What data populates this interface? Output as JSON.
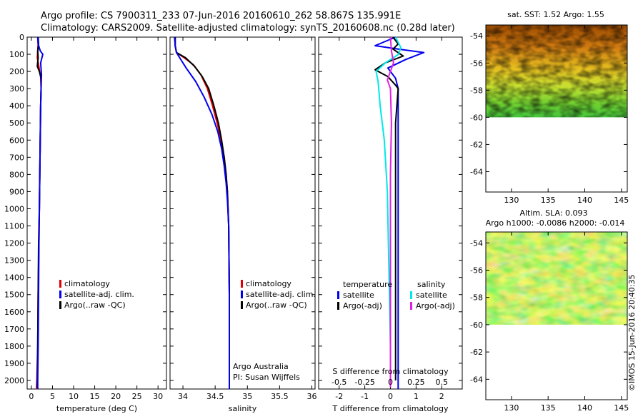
{
  "title": {
    "line1": "Argo profile: CS 7900311_233 07-Jun-2016 20160610_262 58.867S 135.991E",
    "line2": "Climatology: CARS2009. Satellite-adjusted climatology: synTS_20160608.nc (0.28d later)"
  },
  "colors": {
    "climatology": "#e00000",
    "satellite": "#0000ee",
    "argo": "#000000",
    "sal_satellite": "#00e8e8",
    "sal_argo": "#e020e0"
  },
  "chart_data": [
    {
      "id": "temperature",
      "type": "line",
      "xlabel": "temperature (deg C)",
      "xticks": [
        0,
        5,
        10,
        15,
        20,
        25,
        30
      ],
      "xlim": [
        -1,
        32
      ],
      "ylim": [
        0,
        2050
      ],
      "yreversed": true,
      "yticks": [
        0,
        100,
        200,
        300,
        400,
        500,
        600,
        700,
        800,
        900,
        1000,
        1100,
        1200,
        1300,
        1400,
        1500,
        1600,
        1700,
        1800,
        1900,
        2000
      ],
      "legend": [
        "climatology",
        "satellite-adj. clim.",
        "Argo(..raw -QC)"
      ],
      "series": [
        {
          "name": "climatology",
          "color_key": "climatology",
          "x": [
            1.5,
            1.6,
            1.5,
            1.4,
            1.7,
            1.9,
            2.2,
            2.3,
            2.2,
            2.1,
            2.0,
            1.9,
            1.8,
            1.6,
            1.5,
            1.3,
            1.2
          ],
          "y": [
            0,
            40,
            80,
            120,
            160,
            190,
            230,
            300,
            400,
            600,
            800,
            1000,
            1200,
            1500,
            1800,
            2000,
            2050
          ]
        },
        {
          "name": "Argo(..raw -QC)",
          "color_key": "argo",
          "x": [
            1.6,
            1.7,
            1.5,
            1.6,
            1.4,
            1.9,
            2.3,
            2.3,
            2.2,
            2.1,
            2.0,
            1.9,
            1.7,
            1.6,
            1.5,
            1.4,
            1.4
          ],
          "y": [
            0,
            40,
            80,
            120,
            170,
            200,
            240,
            300,
            400,
            600,
            800,
            1000,
            1200,
            1500,
            1800,
            2000,
            2040
          ]
        },
        {
          "name": "satellite-adj. clim.",
          "color_key": "satellite",
          "x": [
            1.5,
            1.6,
            2.1,
            2.7,
            2.2,
            2.4,
            2.3,
            2.2,
            2.1,
            2.0,
            1.9,
            1.8,
            1.7,
            1.6,
            1.5,
            1.5
          ],
          "y": [
            0,
            40,
            80,
            100,
            150,
            220,
            300,
            400,
            600,
            800,
            1000,
            1200,
            1500,
            1800,
            2000,
            2050
          ]
        }
      ]
    },
    {
      "id": "salinity",
      "type": "line",
      "xlabel": "salinity",
      "xticks": [
        34,
        34.5,
        35,
        35.5,
        36
      ],
      "xtick_labels": [
        "34",
        "34.5",
        "35",
        "35.5",
        "36"
      ],
      "xlim": [
        33.8,
        36.05
      ],
      "ylim": [
        0,
        2050
      ],
      "yreversed": true,
      "legend": [
        "climatology",
        "satellite-adj. clim.",
        "Argo(..raw -QC)"
      ],
      "annotation": [
        "Argo Australia",
        "PI: Susan Wijffels"
      ],
      "series": [
        {
          "name": "climatology",
          "color_key": "climatology",
          "x": [
            33.88,
            33.88,
            33.9,
            34.02,
            34.16,
            34.28,
            34.38,
            34.46,
            34.53,
            34.59,
            34.64,
            34.67,
            34.69,
            34.71,
            34.72,
            34.72
          ],
          "y": [
            0,
            50,
            90,
            120,
            160,
            220,
            300,
            400,
            500,
            600,
            700,
            800,
            900,
            1100,
            1500,
            2050
          ]
        },
        {
          "name": "Argo(..raw -QC)",
          "color_key": "argo",
          "x": [
            33.88,
            33.88,
            33.9,
            34.04,
            34.18,
            34.3,
            34.4,
            34.48,
            34.55,
            34.6,
            34.64,
            34.67,
            34.69,
            34.71,
            34.72,
            34.72
          ],
          "y": [
            0,
            50,
            90,
            120,
            170,
            230,
            300,
            400,
            500,
            600,
            700,
            800,
            900,
            1100,
            1500,
            2040
          ]
        },
        {
          "name": "satellite-adj. clim.",
          "color_key": "satellite",
          "x": [
            33.87,
            33.88,
            33.9,
            33.95,
            34.05,
            34.2,
            34.33,
            34.45,
            34.54,
            34.6,
            34.64,
            34.67,
            34.69,
            34.71,
            34.72,
            34.72
          ],
          "y": [
            0,
            50,
            90,
            120,
            180,
            260,
            350,
            450,
            550,
            650,
            750,
            850,
            950,
            1100,
            1500,
            2050
          ]
        }
      ]
    },
    {
      "id": "difference",
      "type": "line",
      "xlabel": "T difference from climatology",
      "xticks": [
        -2,
        -1,
        0,
        1,
        2
      ],
      "xlim": [
        -2.8,
        2.8
      ],
      "top_xlabel": "S difference from climatology",
      "top_xticks": [
        -0.5,
        -0.25,
        0,
        0.25,
        0.5
      ],
      "top_xtick_labels": [
        "-0.5",
        "-0.25",
        "0",
        "0.25",
        "0.5"
      ],
      "top_xlim": [
        -0.7,
        0.7
      ],
      "ylim": [
        0,
        2050
      ],
      "yreversed": true,
      "legend_groups": [
        {
          "title": "temperature",
          "entries": [
            "satellite",
            "Argo(-adj)"
          ]
        },
        {
          "title": "salinity",
          "entries": [
            "satellite",
            "Argo(-adj)"
          ]
        }
      ],
      "series": [
        {
          "name": "temperature satellite",
          "axis": "T",
          "color_key": "satellite",
          "x": [
            0.2,
            -0.6,
            0.3,
            1.3,
            0.6,
            -0.1,
            0.2,
            0.3,
            0.3,
            0.3,
            0.3,
            0.3,
            0.3
          ],
          "y": [
            0,
            50,
            70,
            90,
            130,
            180,
            240,
            300,
            500,
            800,
            1200,
            1600,
            2050
          ]
        },
        {
          "name": "temperature Argo(-adj)",
          "axis": "T",
          "color_key": "argo",
          "x": [
            0.1,
            0.3,
            0.1,
            0.5,
            -0.2,
            -0.6,
            -0.1,
            0.2,
            0.3,
            0.2,
            0.2,
            0.2,
            0.2
          ],
          "y": [
            0,
            40,
            70,
            110,
            150,
            190,
            230,
            280,
            300,
            500,
            1000,
            1500,
            2000
          ]
        },
        {
          "name": "salinity satellite",
          "axis": "S",
          "color_key": "sal_satellite",
          "x": [
            0.05,
            0.1,
            0.08,
            -0.05,
            -0.14,
            -0.12,
            -0.1,
            -0.06,
            -0.03,
            -0.02,
            -0.01,
            0.0,
            0.0
          ],
          "y": [
            0,
            60,
            100,
            150,
            200,
            260,
            400,
            600,
            900,
            1200,
            1500,
            1800,
            2040
          ]
        },
        {
          "name": "salinity Argo(-adj)",
          "axis": "S",
          "color_key": "sal_argo",
          "x": [
            0.0,
            0.01,
            0.03,
            0.0,
            -0.03,
            0.0,
            0.01,
            0.0,
            0.0,
            0.0,
            0.0,
            0.0
          ],
          "y": [
            0,
            80,
            150,
            200,
            250,
            300,
            500,
            800,
            1200,
            1600,
            1900,
            2040
          ]
        }
      ]
    },
    {
      "id": "sst-map",
      "type": "heatmap",
      "title": "sat. SST: 1.52 Argo: 1.55",
      "xticks": [
        130,
        135,
        140,
        145
      ],
      "xlim": [
        126.5,
        145.8
      ],
      "yticks": [
        -54,
        -56,
        -58,
        -60,
        -62,
        -64
      ],
      "ylim": [
        -65.5,
        -53.2
      ],
      "data_ylim": [
        -60,
        -53.2
      ]
    },
    {
      "id": "sla-map",
      "type": "heatmap",
      "title": "Altim. SLA: 0.093",
      "subtitle": "Argo h1000: -0.0086 h2000: -0.014",
      "xticks": [
        130,
        135,
        140,
        145
      ],
      "xlim": [
        126.5,
        145.8
      ],
      "yticks": [
        -54,
        -56,
        -58,
        -60,
        -62,
        -64
      ],
      "ylim": [
        -65.5,
        -53.2
      ],
      "data_ylim": [
        -60,
        -53.2
      ]
    }
  ],
  "credit": "©IMOS 15-Jun-2016 20:40:35"
}
